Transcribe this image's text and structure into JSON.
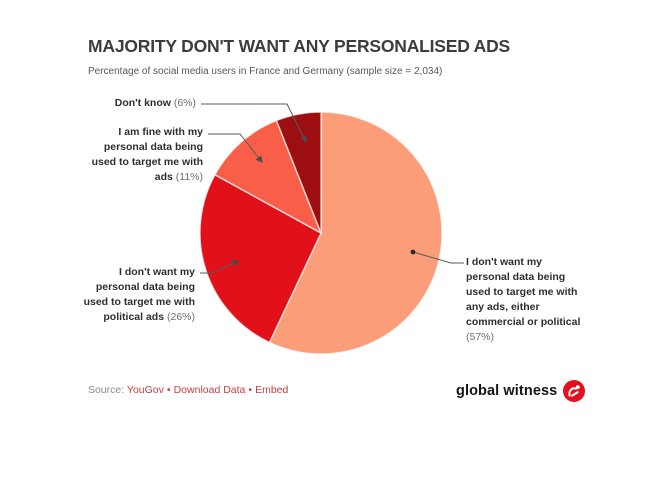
{
  "header": {
    "title": "MAJORITY DON'T WANT ANY PERSONALISED ADS",
    "subtitle": "Percentage of social media users in France and Germany (sample size = 2,034)"
  },
  "chart_data": {
    "type": "pie",
    "title": "MAJORITY DON'T WANT ANY PERSONALISED ADS",
    "subtitle": "Percentage of social media users in France and Germany (sample size = 2,034)",
    "unit": "%",
    "start_angle_deg": 0,
    "direction": "clockwise",
    "slices": [
      {
        "label": "I don't want my personal data being used to target me with any ads, either commercial or political",
        "value": 57,
        "color": "#FA9D78"
      },
      {
        "label": "I don't want my personal data being used to target me with political ads",
        "value": 26,
        "color": "#E21019"
      },
      {
        "label": "I am fine with my personal data being used to target me with ads",
        "value": 11,
        "color": "#F95F48"
      },
      {
        "label": "Don't know",
        "value": 6,
        "color": "#9C0E10"
      }
    ],
    "legend_position": "callout-labels",
    "grid": false
  },
  "labels": {
    "dont_know": {
      "lines": [
        "Don't know"
      ],
      "pct": " (6%)"
    },
    "fine": {
      "lines": [
        "I am fine with my",
        "personal data being",
        "used to target me with",
        "ads"
      ],
      "pct": " (11%)"
    },
    "political": {
      "lines": [
        "I don't want my",
        "personal data being",
        "used to target me with",
        "political ads"
      ],
      "pct": " (26%)"
    },
    "any_ads": {
      "lines": [
        "I don't want my",
        "personal data being",
        "used to target me with",
        "any ads, either",
        "commercial or political"
      ],
      "pct": "(57%)"
    }
  },
  "footer": {
    "source_prefix": "Source:",
    "separator": "•",
    "links": [
      {
        "label": "YouGov"
      },
      {
        "label": "Download Data"
      },
      {
        "label": "Embed"
      }
    ],
    "logo_text": "global witness"
  },
  "colors": {
    "title": "#3c3c3c",
    "subtitle": "#585858",
    "label_text": "#2e2e2e",
    "label_pct": "#6e6e6e",
    "leader_line": "#5a5a5a",
    "link_red": "#cf3b3b",
    "logo_red": "#E3111C",
    "background": "#ffffff"
  }
}
